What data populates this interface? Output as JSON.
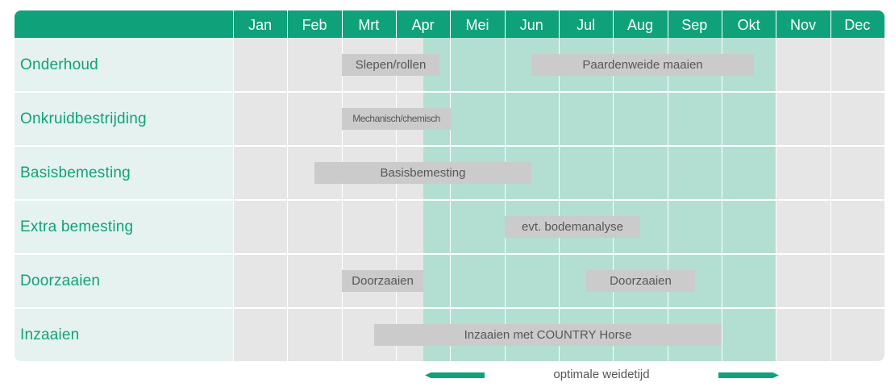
{
  "months": [
    "Jan",
    "Feb",
    "Mrt",
    "Apr",
    "Mei",
    "Jun",
    "Jul",
    "Aug",
    "Sep",
    "Okt",
    "Nov",
    "Dec"
  ],
  "rows": [
    {
      "label": "Onderhoud",
      "tasks": [
        {
          "label": "Slepen/rollen",
          "start_month": 3.0,
          "end_month": 4.8
        },
        {
          "label": "Paardenweide maaien",
          "start_month": 6.5,
          "end_month": 10.6
        }
      ]
    },
    {
      "label": "Onkruidbestrijding",
      "tasks": [
        {
          "label": "Mechanisch/chemisch",
          "start_month": 3.0,
          "end_month": 5.0
        }
      ]
    },
    {
      "label": "Basisbemesting",
      "tasks": [
        {
          "label": "Basisbemesting",
          "start_month": 2.5,
          "end_month": 6.5
        }
      ]
    },
    {
      "label": "Extra bemesting",
      "tasks": [
        {
          "label": "evt. bodemanalyse",
          "start_month": 6.0,
          "end_month": 8.5
        }
      ]
    },
    {
      "label": "Doorzaaien",
      "tasks": [
        {
          "label": "Doorzaaien",
          "start_month": 3.0,
          "end_month": 4.5
        },
        {
          "label": "Doorzaaien",
          "start_month": 7.5,
          "end_month": 9.5
        }
      ]
    },
    {
      "label": "Inzaaien",
      "tasks": [
        {
          "label": "Inzaaien met COUNTRY Horse",
          "start_month": 3.6,
          "end_month": 10.0
        }
      ]
    }
  ],
  "optimal_period": {
    "start_month": 4.5,
    "end_month": 11.0,
    "label": "optimale weidetijd"
  },
  "colors": {
    "accent": "#0fa27a",
    "label_column": "#e5f2ef",
    "off_season": "#e6e6e6",
    "optimal_season": "#b2dfd2",
    "task_bar": "#cbcbcb",
    "task_text": "#575757"
  }
}
